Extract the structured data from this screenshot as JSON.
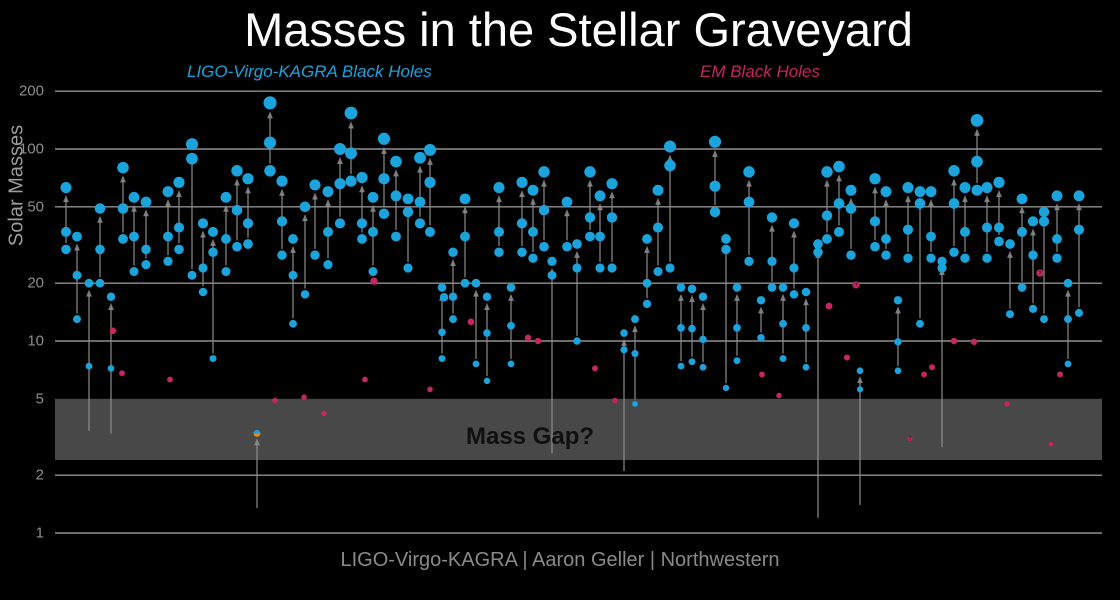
{
  "title": "Masses in the Stellar Graveyard",
  "legend": {
    "gw": {
      "label": "LIGO-Virgo-KAGRA Black Holes",
      "color": "#1ba3dc"
    },
    "em": {
      "label": "EM Black Holes",
      "color": "#c52560"
    }
  },
  "y_axis": {
    "label": "Solar Masses",
    "ticks": [
      200,
      100,
      50,
      20,
      10,
      5,
      2,
      1
    ]
  },
  "mass_gap": {
    "label": "Mass Gap?",
    "lower": 2.4,
    "upper": 5
  },
  "footer": "LIGO-Virgo-KAGRA | Aaron Geller | Northwestern",
  "colors": {
    "background": "#000000",
    "grid": "#b5b5b5",
    "tick_text": "#8e8e8e",
    "arrow": "#8f8f8f",
    "gap_band": "#484848",
    "gw_dot": "#1ba3dc",
    "em_dot": "#c52560",
    "mystery_dot_bottom": "#e0861a",
    "mystery_dot_top": "#1ba3dc"
  },
  "chart_data": {
    "type": "scatter",
    "title": "Masses in the Stellar Graveyard",
    "ylabel": "Solar Masses",
    "yscale": "log",
    "ylim": [
      1,
      250
    ],
    "grid": "horizontal",
    "legend_position": "top",
    "units": "solar masses",
    "schema": {
      "mergers": "[x_px, final_mass, component_mass_1, component_mass_2?] — blue GW merger: component dots with gray arrow up to final-mass dot; components below 4 Msun are drawn as arrow tail only",
      "em_points": "[x_px, mass, optional '?' flag] — crimson electromagnetic black holes",
      "gw_singles": "[x_px, mass] — unpaired blue dots",
      "mystery": "half-blue/half-orange uncertain-nature object inside the mass gap"
    },
    "mergers": [
      [
        66,
        63,
        37,
        30
      ],
      [
        77,
        35,
        22,
        13
      ],
      [
        89,
        20,
        7.4,
        3.4
      ],
      [
        100,
        49,
        30,
        20
      ],
      [
        111,
        17,
        7.2,
        3.3
      ],
      [
        123,
        80,
        49,
        34
      ],
      [
        134,
        56,
        35,
        23
      ],
      [
        146,
        53,
        30,
        25
      ],
      [
        168,
        60,
        35,
        26
      ],
      [
        179,
        67,
        39,
        30
      ],
      [
        192,
        106,
        89,
        22
      ],
      [
        203,
        41,
        24,
        18
      ],
      [
        213,
        37,
        29,
        8.1
      ],
      [
        226,
        56,
        34,
        23
      ],
      [
        237,
        77,
        48,
        31
      ],
      [
        248,
        70,
        41,
        32
      ],
      [
        270,
        174,
        108,
        77
      ],
      [
        282,
        68,
        42,
        28
      ],
      [
        293,
        34,
        22,
        12.3
      ],
      [
        305,
        50,
        17.5
      ],
      [
        315,
        65,
        28
      ],
      [
        328,
        60,
        37,
        25
      ],
      [
        340,
        100,
        66,
        41
      ],
      [
        351,
        154,
        95,
        68
      ],
      [
        362,
        71,
        41,
        34
      ],
      [
        373,
        56,
        37,
        23
      ],
      [
        384,
        113,
        70,
        46
      ],
      [
        396,
        86,
        57,
        35
      ],
      [
        408,
        55,
        47,
        24
      ],
      [
        420,
        90,
        53,
        41
      ],
      [
        430,
        99,
        67,
        37
      ],
      [
        442,
        19,
        11.1,
        8.1
      ],
      [
        453,
        29,
        17,
        13
      ],
      [
        465,
        55,
        35,
        20
      ],
      [
        476,
        20,
        7.6
      ],
      [
        487,
        17,
        11,
        6.2
      ],
      [
        499,
        63,
        37,
        29
      ],
      [
        511,
        19,
        12,
        7.6
      ],
      [
        522,
        67,
        41,
        29
      ],
      [
        533,
        61,
        37,
        27
      ],
      [
        544,
        76,
        48,
        31
      ],
      [
        552,
        26,
        22,
        2.6
      ],
      [
        567,
        53,
        31
      ],
      [
        577,
        32,
        24,
        10
      ],
      [
        590,
        76,
        44,
        35
      ],
      [
        600,
        57,
        35,
        24
      ],
      [
        612,
        66,
        44,
        24
      ],
      [
        624,
        11,
        9,
        2.1
      ],
      [
        635,
        13,
        8.6,
        4.7
      ],
      [
        647,
        34,
        20,
        15.6
      ],
      [
        658,
        61,
        39,
        23
      ],
      [
        670,
        103,
        82,
        24
      ],
      [
        681,
        19,
        11.7,
        7.4
      ],
      [
        692,
        18.7,
        11.6,
        7.8
      ],
      [
        703,
        17,
        10.2,
        7.3
      ],
      [
        715,
        109,
        64,
        47
      ],
      [
        726,
        34,
        30,
        5.7
      ],
      [
        737,
        19,
        11.7,
        7.9
      ],
      [
        749,
        76,
        53,
        26
      ],
      [
        761,
        16.3,
        10.4
      ],
      [
        772,
        44,
        26,
        19
      ],
      [
        783,
        19,
        12.3,
        8.1
      ],
      [
        794,
        41,
        24,
        17.5
      ],
      [
        806,
        18,
        11.7,
        7.3
      ],
      [
        818,
        32,
        29,
        1.2
      ],
      [
        827,
        76,
        45,
        34
      ],
      [
        839,
        81,
        52,
        37
      ],
      [
        851,
        61,
        49,
        28
      ],
      [
        860,
        7,
        5.6,
        1.4
      ],
      [
        875,
        70,
        42,
        31
      ],
      [
        886,
        60,
        34,
        28
      ],
      [
        898,
        16.3,
        9.9,
        7
      ],
      [
        908,
        63,
        38,
        27
      ],
      [
        920,
        60,
        52,
        12.3
      ],
      [
        931,
        60,
        35,
        27
      ],
      [
        942,
        26,
        24,
        2.8
      ],
      [
        954,
        77,
        52,
        29
      ],
      [
        965,
        63,
        37,
        27
      ],
      [
        977,
        141,
        86,
        61
      ],
      [
        987,
        63,
        39,
        27
      ],
      [
        999,
        67,
        39,
        33
      ],
      [
        1010,
        32,
        13.8
      ],
      [
        1022,
        55,
        37,
        19
      ],
      [
        1033,
        42,
        28,
        14.7
      ],
      [
        1044,
        47,
        42,
        13
      ],
      [
        1057,
        57,
        34,
        27
      ],
      [
        1068,
        20,
        13,
        7.6
      ],
      [
        1079,
        57,
        38,
        14
      ]
    ],
    "gw_singles": [
      [
        444,
        16.9
      ]
    ],
    "em_points": [
      [
        113,
        11.3
      ],
      [
        122,
        6.8
      ],
      [
        170,
        6.3
      ],
      [
        275,
        4.9
      ],
      [
        304,
        5.1
      ],
      [
        324,
        4.2
      ],
      [
        365,
        6.3
      ],
      [
        374,
        20.5
      ],
      [
        430,
        5.6
      ],
      [
        471,
        12.6
      ],
      [
        528,
        10.4
      ],
      [
        538,
        10.0
      ],
      [
        595,
        7.2
      ],
      [
        615,
        4.9
      ],
      [
        762,
        6.7
      ],
      [
        779,
        5.2
      ],
      [
        829,
        15.2
      ],
      [
        847,
        8.2
      ],
      [
        856,
        19.6,
        "?"
      ],
      [
        910,
        3.1,
        "?"
      ],
      [
        924,
        6.7
      ],
      [
        932,
        7.3
      ],
      [
        954,
        10.0
      ],
      [
        974,
        9.9
      ],
      [
        1007,
        4.7
      ],
      [
        1040,
        22.6,
        "?"
      ],
      [
        1051,
        2.9
      ],
      [
        1060,
        6.7
      ]
    ],
    "mystery": {
      "x": 257,
      "mass": 3.3,
      "arrow_from": 1.35
    }
  }
}
